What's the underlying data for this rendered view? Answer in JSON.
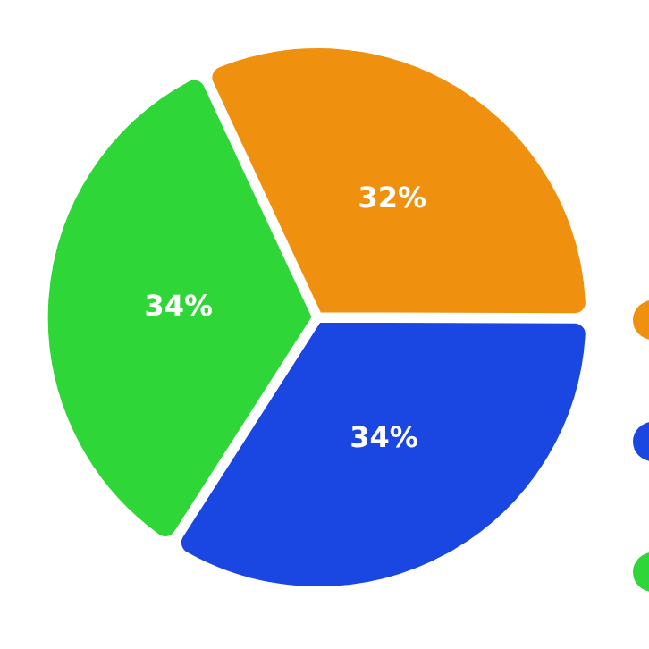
{
  "chart_data": {
    "type": "pie",
    "categories": [
      null,
      null,
      null
    ],
    "values": [
      32,
      34,
      34
    ],
    "colors": [
      "#f0900f",
      "#1a46e2",
      "#2fd637"
    ],
    "value_labels": [
      "32%",
      "34%",
      "34%"
    ],
    "legend": false
  }
}
